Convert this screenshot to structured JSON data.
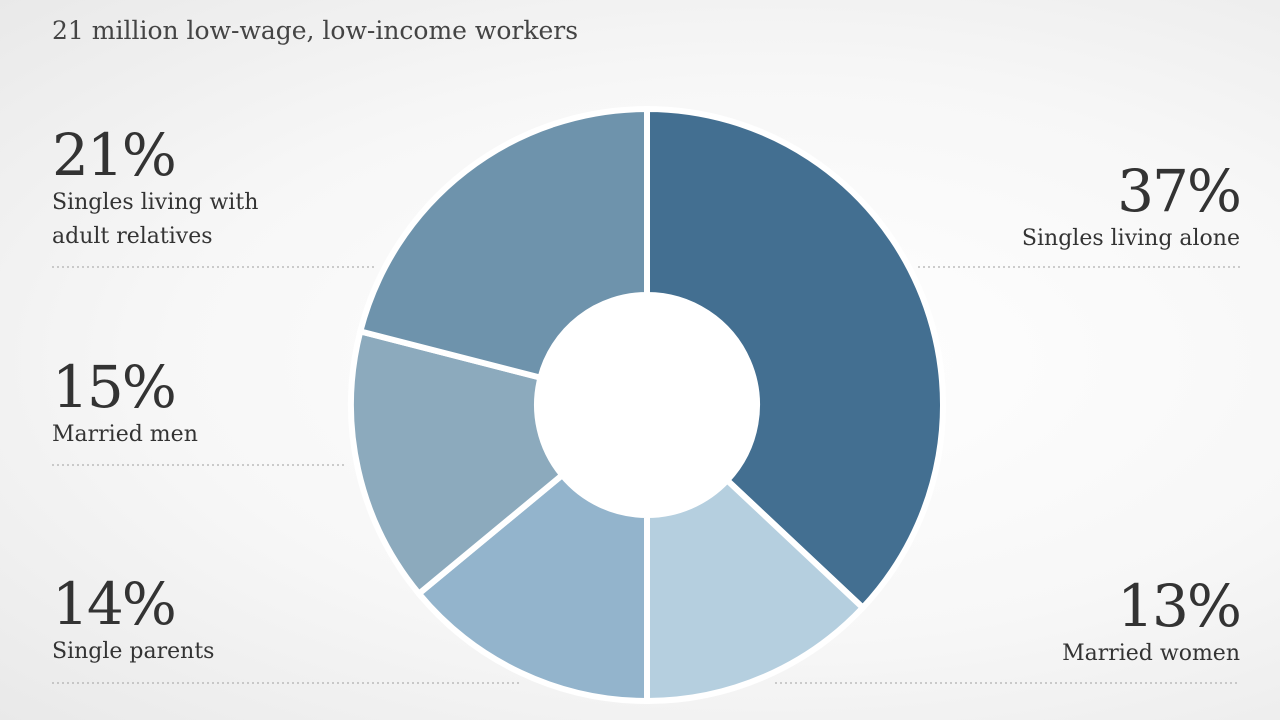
{
  "chart_data": {
    "type": "pie",
    "donut": true,
    "title": "21 million low-wage, low-income workers",
    "categories": [
      "Singles living alone",
      "Married women",
      "Single parents",
      "Married men",
      "Singles living with adult relatives"
    ],
    "values": [
      37,
      13,
      14,
      15,
      21
    ],
    "value_labels": [
      "37%",
      "13%",
      "14%",
      "15%",
      "21%"
    ],
    "colors": [
      "#436f91",
      "#b5cfdf",
      "#93b4cc",
      "#8caabd",
      "#6e93ac"
    ]
  }
}
